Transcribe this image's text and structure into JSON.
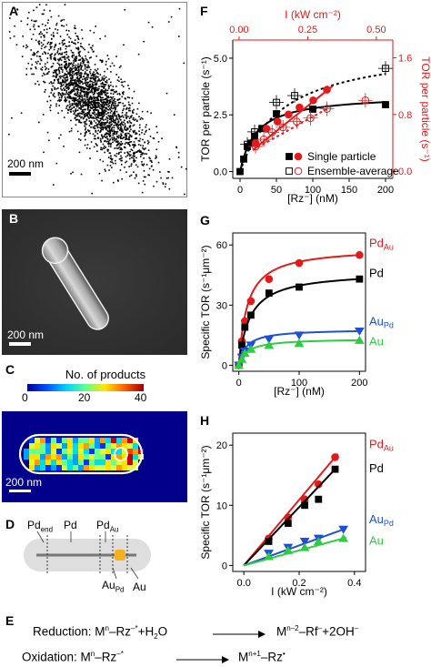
{
  "panels": {
    "A": {
      "label": "A",
      "scale": "200 nm"
    },
    "B": {
      "label": "B",
      "scale": "200 nm"
    },
    "C": {
      "label": "C",
      "colorbar_title": "No. of products",
      "cb_ticks": [
        "0",
        "20",
        "40"
      ],
      "scale": "200 nm"
    },
    "D": {
      "label": "D",
      "seg_pd_end": "Pd",
      "seg_pd_end_sub": "end",
      "seg_pd": "Pd",
      "seg_pdau": "Pd",
      "seg_pdau_sub": "Au",
      "seg_aupd": "Au",
      "seg_aupd_sub": "Pd",
      "seg_au": "Au"
    },
    "E": {
      "label": "E",
      "line1_pre": "Reduction: M",
      "line1_sup1": "n",
      "line1_mid": "–Rz",
      "line1_sup2": "–*",
      "line1_plus": "+H",
      "line1_sub": "2",
      "line1_o": "O",
      "line1_rhs": "M",
      "line1_rhs_sup": "n–2",
      "line1_rhs_rest": "–Rf",
      "line1_rhs_sup2": "–",
      "line1_rhs_end": "+2OH",
      "line1_rhs_sup3": "–",
      "line2_pre": "Oxidation: M",
      "line2_sup1": "n",
      "line2_mid": "–Rz",
      "line2_sup2": "–*",
      "line2_rhs": "M",
      "line2_rhs_sup": "n+1",
      "line2_rhs_rest": "–Rz",
      "line2_rhs_sup2": "•"
    },
    "F": {
      "label": "F"
    },
    "G": {
      "label": "G"
    },
    "H": {
      "label": "H"
    }
  },
  "chart_data": [
    {
      "panel": "F",
      "type": "scatter",
      "xlabel": "[Rz⁻] (nM)",
      "ylabel": "TOR per particle (s⁻¹)",
      "top_xlabel": "I (kW cm⁻²)",
      "right_ylabel": "TOR per particle (s⁻¹)",
      "xlim": [
        -10,
        210
      ],
      "ylim": [
        -0.3,
        5.8
      ],
      "xticks": [
        "0",
        "50",
        "100",
        "150",
        "200"
      ],
      "yticks": [
        "0.0",
        "2.5",
        "5.0"
      ],
      "top_xlim": [
        -0.023,
        0.56
      ],
      "top_xticks": [
        "0.00",
        "0.25",
        "0.50"
      ],
      "right_ylim": [
        -0.1,
        1.85
      ],
      "right_yticks": [
        "0.0",
        "0.8",
        "1.6"
      ],
      "legend": [
        "Single particle",
        "Ensemble-average"
      ],
      "series": [
        {
          "name": "Single particle",
          "axis": "left",
          "marker": "filled-square",
          "color": "#000000",
          "x": [
            0,
            5,
            10,
            15,
            20,
            30,
            50,
            100,
            200
          ],
          "y": [
            0.0,
            0.55,
            1.1,
            1.25,
            1.55,
            1.9,
            2.55,
            2.75,
            2.95
          ]
        },
        {
          "name": "Ensemble-average",
          "axis": "left",
          "marker": "open-square",
          "color": "#000000",
          "x": [
            10,
            20,
            50,
            75,
            200
          ],
          "y": [
            1.2,
            1.75,
            3.05,
            3.35,
            4.55
          ]
        },
        {
          "name": "Single particle",
          "axis": "top-right",
          "marker": "filled-circle",
          "color": "#e31a1c",
          "x": [
            0.06,
            0.1,
            0.14,
            0.18,
            0.22,
            0.27,
            0.32
          ],
          "y": [
            0.4,
            0.6,
            0.7,
            0.8,
            0.9,
            1.0,
            1.15
          ]
        },
        {
          "name": "Ensemble-average",
          "axis": "top-right",
          "marker": "open-circle",
          "color": "#e31a1c",
          "x": [
            0.06,
            0.09,
            0.12,
            0.16,
            0.21,
            0.26,
            0.32,
            0.46
          ],
          "y": [
            0.35,
            0.45,
            0.55,
            0.62,
            0.7,
            0.75,
            0.88,
            1.0
          ]
        }
      ]
    },
    {
      "panel": "G",
      "type": "line",
      "xlabel": "[Rz⁻] (nM)",
      "ylabel": "Specific TOR (s⁻¹μm⁻²)",
      "xlim": [
        -10,
        210
      ],
      "ylim": [
        -3,
        66
      ],
      "xticks": [
        "0",
        "100",
        "200"
      ],
      "yticks": [
        "0",
        "30",
        "60"
      ],
      "series": [
        {
          "name": "Pd",
          "sub": "Au",
          "color": "#e31a1c",
          "marker": "circle",
          "x": [
            0,
            5,
            10,
            20,
            50,
            100,
            200
          ],
          "y": [
            0,
            12,
            22,
            32,
            43,
            51,
            55
          ]
        },
        {
          "name": "Pd",
          "sub": "",
          "color": "#000000",
          "marker": "square",
          "x": [
            0,
            5,
            10,
            20,
            50,
            100,
            200
          ],
          "y": [
            0,
            10,
            19,
            25,
            36,
            39,
            43
          ]
        },
        {
          "name": "Au",
          "sub": "Pd",
          "color": "#1f4fd6",
          "marker": "triangle-down",
          "x": [
            0,
            5,
            10,
            20,
            50,
            100,
            200
          ],
          "y": [
            0,
            4,
            7,
            10,
            13,
            15,
            17
          ]
        },
        {
          "name": "Au",
          "sub": "",
          "color": "#2ecc40",
          "marker": "triangle-up",
          "x": [
            0,
            5,
            10,
            20,
            50,
            100,
            200
          ],
          "y": [
            0,
            3,
            6,
            8,
            10,
            11,
            12.5
          ]
        }
      ]
    },
    {
      "panel": "H",
      "type": "line",
      "xlabel": "I (kW cm⁻²)",
      "ylabel": "Specific TOR (s⁻¹μm⁻²)",
      "xlim": [
        -0.04,
        0.44
      ],
      "ylim": [
        -1,
        22
      ],
      "xticks": [
        "0.0",
        "0.2",
        "0.4"
      ],
      "yticks": [
        "0",
        "10",
        "20"
      ],
      "series": [
        {
          "name": "Pd",
          "sub": "Au",
          "color": "#e31a1c",
          "marker": "circle",
          "x": [
            0.09,
            0.16,
            0.22,
            0.27,
            0.33
          ],
          "y": [
            4.5,
            8,
            11,
            13.5,
            18
          ]
        },
        {
          "name": "Pd",
          "sub": "",
          "color": "#000000",
          "marker": "square",
          "x": [
            0.09,
            0.16,
            0.22,
            0.27,
            0.33
          ],
          "y": [
            4,
            7,
            10,
            11,
            16
          ]
        },
        {
          "name": "Au",
          "sub": "Pd",
          "color": "#1f4fd6",
          "marker": "triangle-down",
          "x": [
            0.09,
            0.16,
            0.22,
            0.27,
            0.36
          ],
          "y": [
            2,
            3,
            4,
            4.5,
            6
          ]
        },
        {
          "name": "Au",
          "sub": "",
          "color": "#2ecc40",
          "marker": "triangle-up",
          "x": [
            0.09,
            0.16,
            0.22,
            0.27,
            0.36
          ],
          "y": [
            1.5,
            2.5,
            3,
            4,
            4.5
          ]
        }
      ]
    }
  ]
}
